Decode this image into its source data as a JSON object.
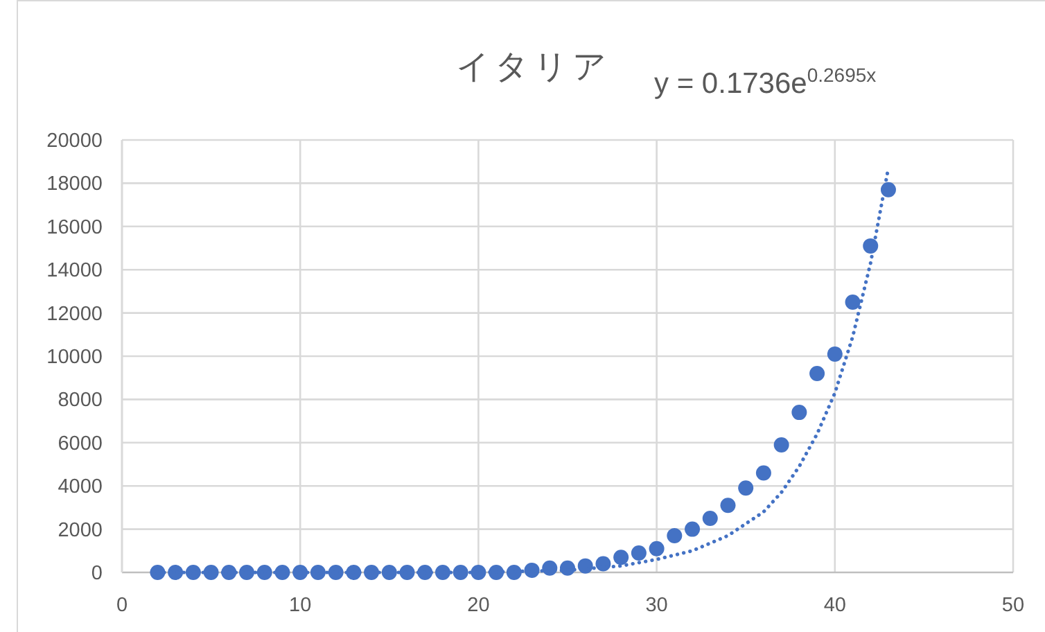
{
  "chart_data": {
    "type": "scatter",
    "title": "イタリア",
    "annotations": [
      "y = 0.1736e$^{0.2695x}$"
    ],
    "x": [
      2,
      3,
      4,
      5,
      6,
      7,
      8,
      9,
      10,
      11,
      12,
      13,
      14,
      15,
      16,
      17,
      18,
      19,
      20,
      21,
      22,
      23,
      24,
      25,
      26,
      27,
      28,
      29,
      30,
      31,
      32,
      33,
      34,
      35,
      36,
      37,
      38,
      39,
      40,
      41,
      42,
      43
    ],
    "series": [
      {
        "color": "#4472c4",
        "marker": "circle",
        "values": [
          0,
          0,
          0,
          0,
          0,
          0,
          0,
          0,
          0,
          0,
          0,
          0,
          0,
          0,
          0,
          0,
          0,
          0,
          0,
          0,
          0,
          100,
          200,
          200,
          300,
          400,
          700,
          900,
          1100,
          1700,
          2000,
          2500,
          3100,
          3900,
          4600,
          5900,
          7400,
          9200,
          10100,
          12500,
          15100,
          17700
        ]
      },
      {
        "type": "line",
        "color": "#4472c4",
        "line_style": "dotted",
        "x": [
          2,
          10,
          20,
          25,
          28,
          30,
          32,
          34,
          36,
          37,
          38,
          39,
          40,
          41,
          42,
          43
        ],
        "values": [
          0,
          0,
          0,
          100,
          300,
          600,
          1000,
          1700,
          2800,
          3700,
          4900,
          6400,
          8300,
          10900,
          14300,
          18700
        ]
      }
    ],
    "xlim": [
      0,
      50
    ],
    "xticks": [
      0,
      10,
      20,
      30,
      40,
      50
    ],
    "ylim": [
      0,
      20000
    ],
    "yticks": [
      0,
      2000,
      4000,
      6000,
      8000,
      10000,
      12000,
      14000,
      16000,
      18000,
      20000
    ],
    "grid": true
  }
}
